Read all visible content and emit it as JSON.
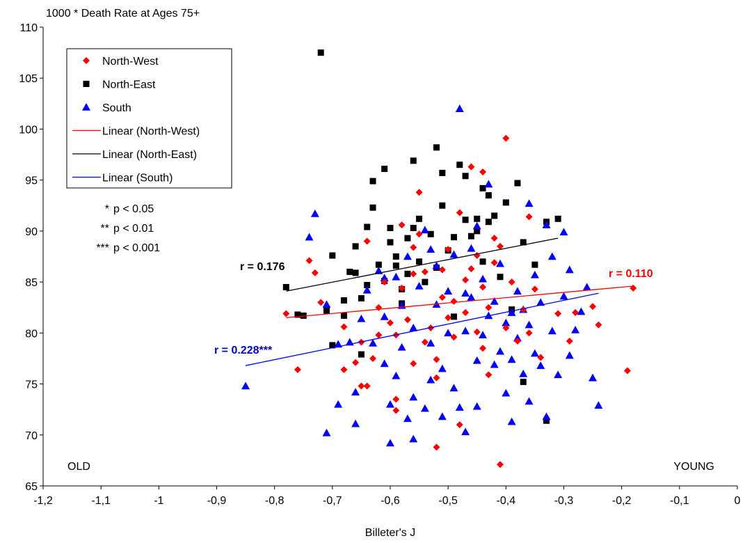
{
  "chart_data": {
    "type": "scatter",
    "ylabel": "1000 * Death Rate at Ages 75+",
    "xlabel": "Billeter's J",
    "xlim": [
      -1.2,
      0
    ],
    "ylim": [
      65,
      110
    ],
    "x_ticks": [
      "-1,2",
      "-1,1",
      "-1",
      "-0,9",
      "-0,8",
      "-0,7",
      "-0,6",
      "-0,5",
      "-0,4",
      "-0,3",
      "-0,2",
      "-0,1",
      "0"
    ],
    "y_ticks": [
      "65",
      "70",
      "75",
      "80",
      "85",
      "90",
      "95",
      "100",
      "105",
      "110"
    ],
    "grid": false,
    "legend_position": "top-left",
    "corner_labels": {
      "left": "OLD",
      "right": "YOUNG"
    },
    "significance_notes": [
      {
        "stars": "*",
        "text": "p < 0.05"
      },
      {
        "stars": "**",
        "text": "p < 0.01"
      },
      {
        "stars": "***",
        "text": "p < 0.001"
      }
    ],
    "series": [
      {
        "name": "North-West",
        "marker": "diamond",
        "color": "#ff0000",
        "trend_name": "Linear (North-West)",
        "r_label": "r = 0.110",
        "trend": {
          "x": [
            -0.78,
            -0.18
          ],
          "y": [
            81.5,
            84.6
          ]
        },
        "points": [
          [
            -0.78,
            81.9
          ],
          [
            -0.76,
            76.4
          ],
          [
            -0.74,
            87.1
          ],
          [
            -0.73,
            85.9
          ],
          [
            -0.72,
            83.0
          ],
          [
            -0.68,
            76.4
          ],
          [
            -0.68,
            80.6
          ],
          [
            -0.66,
            77.1
          ],
          [
            -0.65,
            79.1
          ],
          [
            -0.65,
            74.8
          ],
          [
            -0.64,
            89.0
          ],
          [
            -0.64,
            74.8
          ],
          [
            -0.63,
            77.5
          ],
          [
            -0.62,
            82.5
          ],
          [
            -0.62,
            79.8
          ],
          [
            -0.61,
            85.0
          ],
          [
            -0.6,
            81.0
          ],
          [
            -0.59,
            73.5
          ],
          [
            -0.59,
            72.4
          ],
          [
            -0.59,
            79.8
          ],
          [
            -0.58,
            90.6
          ],
          [
            -0.58,
            84.4
          ],
          [
            -0.57,
            81.3
          ],
          [
            -0.56,
            88.4
          ],
          [
            -0.56,
            85.8
          ],
          [
            -0.56,
            77.0
          ],
          [
            -0.55,
            93.8
          ],
          [
            -0.55,
            89.7
          ],
          [
            -0.54,
            86.0
          ],
          [
            -0.54,
            79.1
          ],
          [
            -0.53,
            80.5
          ],
          [
            -0.52,
            68.8
          ],
          [
            -0.52,
            75.6
          ],
          [
            -0.52,
            77.4
          ],
          [
            -0.51,
            83.5
          ],
          [
            -0.51,
            86.2
          ],
          [
            -0.5,
            88.2
          ],
          [
            -0.5,
            81.5
          ],
          [
            -0.49,
            79.6
          ],
          [
            -0.49,
            83.1
          ],
          [
            -0.48,
            71.0
          ],
          [
            -0.48,
            91.8
          ],
          [
            -0.47,
            85.2
          ],
          [
            -0.47,
            82.0
          ],
          [
            -0.46,
            96.3
          ],
          [
            -0.46,
            86.3
          ],
          [
            -0.45,
            80.1
          ],
          [
            -0.45,
            87.6
          ],
          [
            -0.44,
            95.8
          ],
          [
            -0.44,
            84.5
          ],
          [
            -0.44,
            78.5
          ],
          [
            -0.43,
            75.9
          ],
          [
            -0.43,
            82.5
          ],
          [
            -0.42,
            89.3
          ],
          [
            -0.42,
            86.9
          ],
          [
            -0.41,
            88.5
          ],
          [
            -0.41,
            67.1
          ],
          [
            -0.4,
            99.1
          ],
          [
            -0.4,
            80.5
          ],
          [
            -0.39,
            85.0
          ],
          [
            -0.38,
            79.2
          ],
          [
            -0.37,
            82.3
          ],
          [
            -0.36,
            91.4
          ],
          [
            -0.36,
            80.0
          ],
          [
            -0.35,
            84.3
          ],
          [
            -0.34,
            77.6
          ],
          [
            -0.31,
            81.9
          ],
          [
            -0.29,
            79.2
          ],
          [
            -0.28,
            82.0
          ],
          [
            -0.25,
            82.6
          ],
          [
            -0.24,
            80.8
          ],
          [
            -0.19,
            76.3
          ],
          [
            -0.18,
            84.4
          ]
        ]
      },
      {
        "name": "North-East",
        "marker": "square",
        "color": "#000000",
        "trend_name": "Linear (North-East)",
        "r_label": "r = 0.176",
        "trend": {
          "x": [
            -0.78,
            -0.31
          ],
          "y": [
            84.1,
            89.3
          ]
        },
        "points": [
          [
            -0.78,
            84.5
          ],
          [
            -0.76,
            81.8
          ],
          [
            -0.75,
            81.7
          ],
          [
            -0.72,
            107.5
          ],
          [
            -0.71,
            82.2
          ],
          [
            -0.7,
            78.8
          ],
          [
            -0.7,
            87.6
          ],
          [
            -0.68,
            81.7
          ],
          [
            -0.68,
            83.2
          ],
          [
            -0.67,
            86.0
          ],
          [
            -0.66,
            85.9
          ],
          [
            -0.66,
            88.5
          ],
          [
            -0.65,
            83.4
          ],
          [
            -0.65,
            77.9
          ],
          [
            -0.64,
            84.7
          ],
          [
            -0.64,
            90.4
          ],
          [
            -0.63,
            92.3
          ],
          [
            -0.63,
            94.9
          ],
          [
            -0.62,
            86.7
          ],
          [
            -0.61,
            96.1
          ],
          [
            -0.61,
            85.1
          ],
          [
            -0.6,
            90.3
          ],
          [
            -0.6,
            88.9
          ],
          [
            -0.59,
            87.5
          ],
          [
            -0.59,
            86.6
          ],
          [
            -0.58,
            82.9
          ],
          [
            -0.58,
            84.3
          ],
          [
            -0.57,
            89.3
          ],
          [
            -0.57,
            85.8
          ],
          [
            -0.56,
            96.9
          ],
          [
            -0.56,
            90.3
          ],
          [
            -0.55,
            91.2
          ],
          [
            -0.55,
            87.0
          ],
          [
            -0.54,
            85.0
          ],
          [
            -0.53,
            89.7
          ],
          [
            -0.52,
            98.2
          ],
          [
            -0.52,
            86.4
          ],
          [
            -0.51,
            92.5
          ],
          [
            -0.51,
            95.7
          ],
          [
            -0.5,
            88.1
          ],
          [
            -0.49,
            89.4
          ],
          [
            -0.49,
            81.6
          ],
          [
            -0.48,
            96.5
          ],
          [
            -0.47,
            95.4
          ],
          [
            -0.47,
            91.1
          ],
          [
            -0.46,
            89.5
          ],
          [
            -0.45,
            90.0
          ],
          [
            -0.45,
            91.2
          ],
          [
            -0.44,
            94.2
          ],
          [
            -0.44,
            87.0
          ],
          [
            -0.43,
            93.5
          ],
          [
            -0.43,
            90.9
          ],
          [
            -0.42,
            91.5
          ],
          [
            -0.41,
            85.5
          ],
          [
            -0.4,
            92.8
          ],
          [
            -0.39,
            82.3
          ],
          [
            -0.38,
            94.7
          ],
          [
            -0.37,
            88.9
          ],
          [
            -0.37,
            75.2
          ],
          [
            -0.35,
            86.7
          ],
          [
            -0.33,
            90.9
          ],
          [
            -0.33,
            71.4
          ],
          [
            -0.31,
            91.2
          ]
        ]
      },
      {
        "name": "South",
        "marker": "triangle",
        "color": "#0000ff",
        "trend_name": "Linear (South)",
        "r_label": "r = 0.228***",
        "trend": {
          "x": [
            -0.85,
            -0.24
          ],
          "y": [
            76.8,
            83.9
          ]
        },
        "points": [
          [
            -0.85,
            74.8
          ],
          [
            -0.74,
            89.4
          ],
          [
            -0.73,
            91.7
          ],
          [
            -0.71,
            82.8
          ],
          [
            -0.71,
            70.2
          ],
          [
            -0.69,
            73.0
          ],
          [
            -0.69,
            78.9
          ],
          [
            -0.67,
            79.1
          ],
          [
            -0.66,
            71.1
          ],
          [
            -0.66,
            74.2
          ],
          [
            -0.65,
            81.4
          ],
          [
            -0.64,
            84.2
          ],
          [
            -0.63,
            79.0
          ],
          [
            -0.62,
            86.1
          ],
          [
            -0.61,
            77.0
          ],
          [
            -0.61,
            81.6
          ],
          [
            -0.6,
            69.2
          ],
          [
            -0.6,
            73.0
          ],
          [
            -0.59,
            75.8
          ],
          [
            -0.59,
            85.5
          ],
          [
            -0.58,
            78.6
          ],
          [
            -0.58,
            82.7
          ],
          [
            -0.57,
            71.6
          ],
          [
            -0.57,
            87.5
          ],
          [
            -0.56,
            69.6
          ],
          [
            -0.56,
            73.7
          ],
          [
            -0.56,
            80.5
          ],
          [
            -0.55,
            84.6
          ],
          [
            -0.54,
            72.6
          ],
          [
            -0.54,
            90.1
          ],
          [
            -0.53,
            75.4
          ],
          [
            -0.53,
            79.0
          ],
          [
            -0.52,
            82.8
          ],
          [
            -0.52,
            86.6
          ],
          [
            -0.51,
            71.8
          ],
          [
            -0.51,
            76.5
          ],
          [
            -0.5,
            80.0
          ],
          [
            -0.5,
            84.1
          ],
          [
            -0.49,
            74.6
          ],
          [
            -0.49,
            87.7
          ],
          [
            -0.48,
            72.7
          ],
          [
            -0.48,
            102.0
          ],
          [
            -0.47,
            70.3
          ],
          [
            -0.47,
            80.2
          ],
          [
            -0.46,
            83.5
          ],
          [
            -0.46,
            88.3
          ],
          [
            -0.45,
            72.8
          ],
          [
            -0.45,
            77.3
          ],
          [
            -0.44,
            79.8
          ],
          [
            -0.44,
            85.3
          ],
          [
            -0.43,
            94.6
          ],
          [
            -0.43,
            81.7
          ],
          [
            -0.42,
            76.9
          ],
          [
            -0.42,
            83.1
          ],
          [
            -0.41,
            78.2
          ],
          [
            -0.41,
            86.8
          ],
          [
            -0.4,
            74.1
          ],
          [
            -0.4,
            81.0
          ],
          [
            -0.39,
            71.3
          ],
          [
            -0.39,
            77.4
          ],
          [
            -0.38,
            84.1
          ],
          [
            -0.38,
            79.5
          ],
          [
            -0.37,
            76.0
          ],
          [
            -0.37,
            82.3
          ],
          [
            -0.36,
            73.3
          ],
          [
            -0.36,
            80.8
          ],
          [
            -0.35,
            85.7
          ],
          [
            -0.35,
            78.0
          ],
          [
            -0.34,
            76.8
          ],
          [
            -0.34,
            83.0
          ],
          [
            -0.33,
            90.6
          ],
          [
            -0.33,
            71.8
          ],
          [
            -0.32,
            87.5
          ],
          [
            -0.32,
            80.2
          ],
          [
            -0.31,
            75.9
          ],
          [
            -0.3,
            83.6
          ],
          [
            -0.3,
            89.9
          ],
          [
            -0.29,
            77.8
          ],
          [
            -0.29,
            86.2
          ],
          [
            -0.28,
            80.3
          ],
          [
            -0.26,
            84.5
          ],
          [
            -0.25,
            75.6
          ],
          [
            -0.24,
            72.9
          ],
          [
            -0.27,
            82.1
          ],
          [
            -0.36,
            92.7
          ],
          [
            -0.45,
            90.5
          ],
          [
            -0.53,
            88.2
          ],
          [
            -0.61,
            85.4
          ],
          [
            -0.47,
            83.9
          ],
          [
            -0.39,
            82.0
          ]
        ]
      }
    ]
  }
}
